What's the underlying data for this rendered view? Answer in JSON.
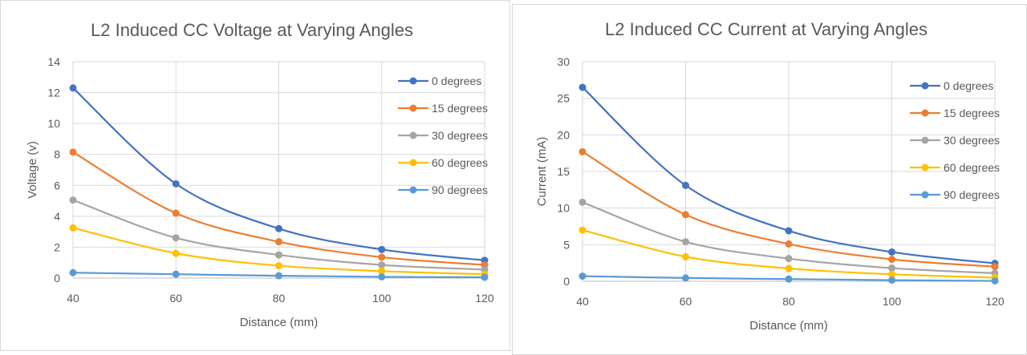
{
  "chart_data": [
    {
      "type": "line",
      "title": "L2 Induced CC Voltage at Varying Angles",
      "xlabel": "Distance (mm)",
      "ylabel": "Voltage (v)",
      "x": [
        40,
        60,
        80,
        100,
        120
      ],
      "xlim": [
        40,
        120
      ],
      "ylim": [
        0,
        14
      ],
      "xticks": [
        40,
        60,
        80,
        100,
        120
      ],
      "yticks": [
        0,
        2,
        4,
        6,
        8,
        10,
        12,
        14
      ],
      "grid": true,
      "legend": "top-right",
      "series": [
        {
          "name": "0 degrees",
          "color": "#4472C4",
          "values": [
            12.3,
            6.1,
            3.2,
            1.85,
            1.15
          ]
        },
        {
          "name": "15 degrees",
          "color": "#ED7D31",
          "values": [
            8.15,
            4.2,
            2.35,
            1.35,
            0.85
          ]
        },
        {
          "name": "30 degrees",
          "color": "#A5A5A5",
          "values": [
            5.05,
            2.6,
            1.5,
            0.85,
            0.55
          ]
        },
        {
          "name": "60 degrees",
          "color": "#FFC000",
          "values": [
            3.25,
            1.6,
            0.8,
            0.45,
            0.25
          ]
        },
        {
          "name": "90 degrees",
          "color": "#5B9BD5",
          "values": [
            0.35,
            0.25,
            0.15,
            0.08,
            0.05
          ]
        }
      ]
    },
    {
      "type": "line",
      "title": "L2 Induced CC Current at Varying Angles",
      "xlabel": "Distance (mm)",
      "ylabel": "Current (mA)",
      "x": [
        40,
        60,
        80,
        100,
        120
      ],
      "xlim": [
        40,
        120
      ],
      "ylim": [
        0,
        30
      ],
      "xticks": [
        40,
        60,
        80,
        100,
        120
      ],
      "yticks": [
        0,
        5,
        10,
        15,
        20,
        25,
        30
      ],
      "grid": true,
      "legend": "top-right",
      "series": [
        {
          "name": "0 degrees",
          "color": "#4472C4",
          "values": [
            26.5,
            13.1,
            6.9,
            4.0,
            2.45
          ]
        },
        {
          "name": "15 degrees",
          "color": "#ED7D31",
          "values": [
            17.7,
            9.1,
            5.1,
            3.0,
            2.0
          ]
        },
        {
          "name": "30 degrees",
          "color": "#A5A5A5",
          "values": [
            10.8,
            5.4,
            3.1,
            1.8,
            1.1
          ]
        },
        {
          "name": "60 degrees",
          "color": "#FFC000",
          "values": [
            7.0,
            3.35,
            1.75,
            0.95,
            0.5
          ]
        },
        {
          "name": "90 degrees",
          "color": "#5B9BD5",
          "values": [
            0.7,
            0.45,
            0.3,
            0.15,
            0.05
          ]
        }
      ]
    }
  ]
}
